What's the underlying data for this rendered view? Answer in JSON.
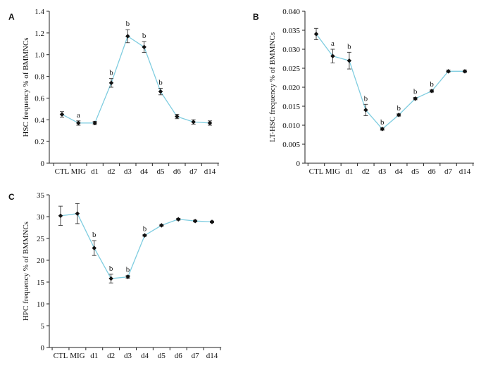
{
  "chart_data": [
    {
      "panel": "A",
      "type": "line",
      "categories": [
        "CTL",
        "MIG",
        "d1",
        "d2",
        "d3",
        "d4",
        "d5",
        "d6",
        "d7",
        "d14"
      ],
      "values": [
        0.45,
        0.37,
        0.37,
        0.74,
        1.17,
        1.07,
        0.66,
        0.43,
        0.38,
        0.37
      ],
      "errors": [
        0.025,
        0.02,
        0.015,
        0.04,
        0.06,
        0.05,
        0.03,
        0.02,
        0.02,
        0.02
      ],
      "significance": [
        "",
        "a",
        "",
        "b",
        "b",
        "b",
        "b",
        "",
        "",
        ""
      ],
      "ylabel": "HSC frequency % of BMMNCs",
      "ylim": [
        0,
        1.4
      ],
      "yticks": [
        "0",
        "0.2",
        "0.4",
        "0.6",
        "0.8",
        "1.0",
        "1.2",
        "1.4"
      ],
      "line_color": "#7fcde0",
      "grid": false
    },
    {
      "panel": "B",
      "type": "line",
      "categories": [
        "CTL",
        "MIG",
        "d1",
        "d2",
        "d3",
        "d4",
        "d5",
        "d6",
        "d7",
        "d14"
      ],
      "values": [
        0.034,
        0.0282,
        0.027,
        0.014,
        0.009,
        0.0127,
        0.017,
        0.019,
        0.0242,
        0.0242
      ],
      "errors": [
        0.0015,
        0.0018,
        0.0022,
        0.0015,
        0.0003,
        0.0003,
        0.0003,
        0.0003,
        0.0003,
        0.0003
      ],
      "significance": [
        "",
        "a",
        "b",
        "b",
        "b",
        "b",
        "b",
        "b",
        "",
        ""
      ],
      "ylabel": "LT-HSC frequency % of BMMNCs",
      "ylim": [
        0,
        0.04
      ],
      "yticks": [
        "0",
        "0.005",
        "0.010",
        "0.015",
        "0.020",
        "0.025",
        "0.030",
        "0.035",
        "0.040"
      ],
      "line_color": "#7fcde0",
      "grid": false
    },
    {
      "panel": "C",
      "type": "line",
      "categories": [
        "CTL",
        "MIG",
        "d1",
        "d2",
        "d3",
        "d4",
        "d5",
        "d6",
        "d7",
        "d14"
      ],
      "values": [
        30.2,
        30.7,
        22.8,
        15.8,
        16.2,
        25.7,
        28.0,
        29.4,
        29.0,
        28.8
      ],
      "errors": [
        2.2,
        2.3,
        1.7,
        1.0,
        0.3,
        0.2,
        0.2,
        0.2,
        0.2,
        0.2
      ],
      "significance": [
        "",
        "",
        "b",
        "b",
        "b",
        "b",
        "",
        "",
        "",
        ""
      ],
      "ylabel": "HPC frequency % of BMMNCs",
      "ylim": [
        0,
        35
      ],
      "yticks": [
        "0",
        "5",
        "10",
        "15",
        "20",
        "25",
        "30",
        "35"
      ],
      "line_color": "#7fcde0",
      "grid": false
    }
  ]
}
